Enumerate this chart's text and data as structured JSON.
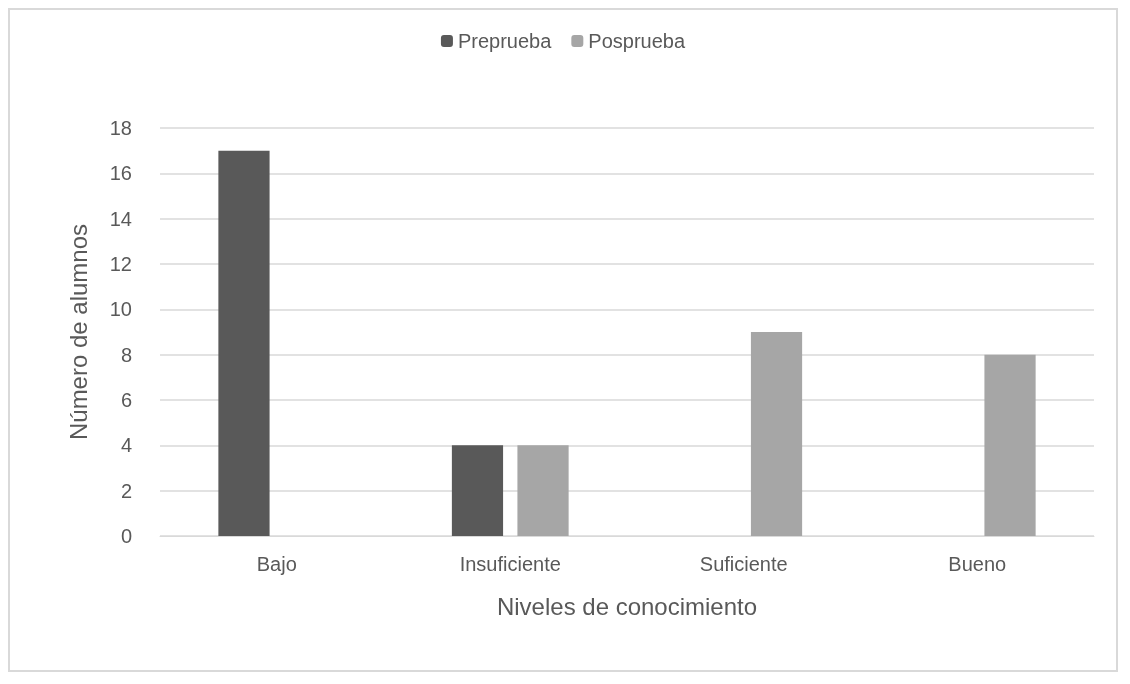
{
  "chart_data": {
    "type": "bar",
    "xlabel": "Niveles de conocimiento",
    "ylabel": "Número de alumnos",
    "categories": [
      "Bajo",
      "Insuficiente",
      "Suficiente",
      "Bueno"
    ],
    "series": [
      {
        "name": "Preprueba",
        "color": "#595959",
        "values": [
          17,
          4,
          0,
          0
        ]
      },
      {
        "name": "Posprueba",
        "color": "#a6a6a6",
        "values": [
          0,
          4,
          9,
          8
        ]
      }
    ],
    "ylim": [
      0,
      18
    ],
    "yticks": [
      0,
      2,
      4,
      6,
      8,
      10,
      12,
      14,
      16,
      18
    ],
    "grid": "y",
    "legend": "top"
  }
}
